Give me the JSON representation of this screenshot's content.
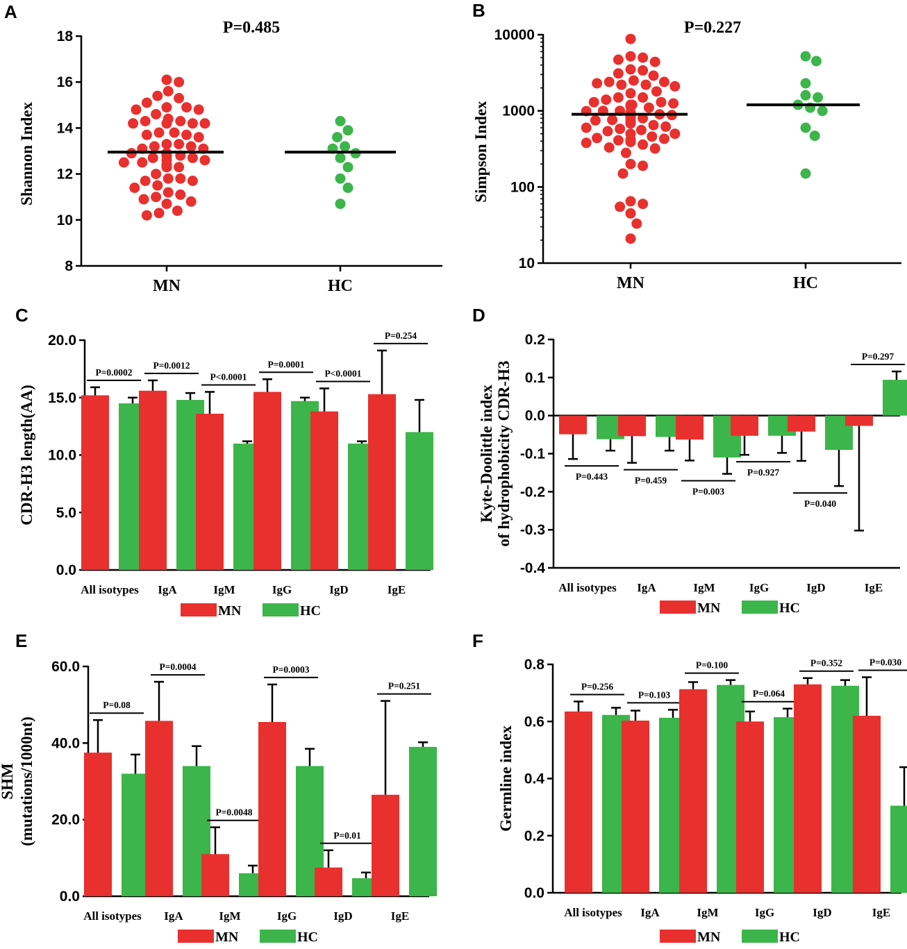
{
  "colors": {
    "MN": "#E8302E",
    "HC": "#3CB54A",
    "axis": "#000000"
  },
  "chart_data": [
    {
      "id": "A",
      "type": "scatter",
      "panel_label": "A",
      "title": "P=0.485",
      "ylabel": "Shannon Index",
      "categories": [
        "MN",
        "HC"
      ],
      "ylim": [
        8,
        18
      ],
      "yticks": [
        "8",
        "10",
        "12",
        "14",
        "16",
        "18"
      ],
      "means": [
        12.95,
        12.95
      ],
      "series": [
        {
          "name": "MN",
          "values": [
            16.1,
            16.0,
            15.6,
            15.4,
            15.3,
            15.1,
            14.9,
            14.9,
            14.8,
            14.8,
            14.6,
            14.4,
            14.3,
            14.3,
            14.2,
            14.2,
            14.2,
            14.2,
            13.8,
            13.8,
            13.7,
            13.7,
            13.6,
            13.3,
            13.3,
            13.2,
            13.2,
            13.1,
            13.1,
            12.9,
            12.9,
            12.9,
            12.9,
            12.8,
            12.8,
            12.7,
            12.6,
            12.5,
            12.4,
            12.3,
            12.3,
            12.4,
            12.5,
            12.6,
            12.7,
            12.8,
            12.9,
            12.9,
            12.9,
            12.4,
            12.3,
            12.0,
            11.8,
            11.8,
            11.7,
            11.7,
            11.5,
            11.4,
            11.2,
            11.1,
            11.0,
            10.9,
            10.8,
            10.7,
            10.4,
            10.3,
            10.2
          ]
        },
        {
          "name": "HC",
          "values": [
            14.3,
            13.9,
            13.6,
            13.2,
            13.1,
            12.9,
            12.7,
            12.3,
            11.8,
            11.4,
            10.7
          ]
        }
      ]
    },
    {
      "id": "B",
      "type": "scatter",
      "panel_label": "B",
      "yscale": "log",
      "title": "P=0.227",
      "ylabel": "Simpson Index",
      "categories": [
        "MN",
        "HC"
      ],
      "ylim": [
        10,
        10000
      ],
      "yticks": [
        "10",
        "100",
        "1000",
        "10000"
      ],
      "means": [
        900,
        1200
      ],
      "series": [
        {
          "name": "MN",
          "values": [
            8800,
            5200,
            5000,
            4700,
            4400,
            3500,
            3400,
            3100,
            2900,
            2500,
            2400,
            2400,
            2300,
            2200,
            2200,
            2100,
            1800,
            1700,
            1500,
            1500,
            1400,
            1300,
            1300,
            1250,
            1200,
            1200,
            1150,
            1100,
            1000,
            1000,
            990,
            950,
            900,
            880,
            850,
            840,
            800,
            780,
            760,
            750,
            720,
            700,
            680,
            650,
            620,
            600,
            580,
            560,
            540,
            500,
            500,
            460,
            440,
            430,
            420,
            410,
            400,
            390,
            380,
            360,
            330,
            320,
            280,
            200,
            190,
            150,
            65,
            60,
            55,
            45,
            33,
            21
          ]
        },
        {
          "name": "HC",
          "values": [
            5200,
            4500,
            2300,
            1600,
            1500,
            1200,
            1100,
            1000,
            600,
            470,
            150
          ]
        }
      ]
    },
    {
      "id": "C",
      "type": "bar",
      "panel_label": "C",
      "ylabel": "CDR-H3 length(AA)",
      "categories": [
        "All isotypes",
        "IgA",
        "IgM",
        "IgG",
        "IgD",
        "IgE"
      ],
      "ylim": [
        0,
        20
      ],
      "yticks": [
        "0.0",
        "5.0",
        "10.0",
        "15.0",
        "20.0"
      ],
      "series": [
        {
          "name": "MN",
          "values": [
            15.2,
            15.6,
            13.6,
            15.5,
            13.8,
            15.3
          ],
          "err": [
            0.7,
            0.9,
            1.9,
            1.1,
            2.0,
            3.8
          ]
        },
        {
          "name": "HC",
          "values": [
            14.5,
            14.8,
            11.0,
            14.7,
            11.0,
            12.0
          ],
          "err": [
            0.5,
            0.6,
            0.2,
            0.3,
            0.2,
            2.8
          ]
        }
      ],
      "pvalues": [
        "P=0.0002",
        "P=0.0012",
        "P<0.0001",
        "P=0.0001",
        "P<0.0001",
        "P=0.254"
      ],
      "legend": [
        "MN",
        "HC"
      ]
    },
    {
      "id": "D",
      "type": "bar",
      "panel_label": "D",
      "ylabel": [
        "Kyte-Doolittle index",
        "of hydrophobicity CDR-H3"
      ],
      "categories": [
        "All isotypes",
        "IgA",
        "IgM",
        "IgG",
        "IgD",
        "IgE"
      ],
      "ylim": [
        -0.4,
        0.2
      ],
      "yticks": [
        "-0.4",
        "-0.3",
        "-0.2",
        "-0.1",
        "0.0",
        "0.1",
        "0.2"
      ],
      "series": [
        {
          "name": "MN",
          "values": [
            -0.049,
            -0.054,
            -0.063,
            -0.053,
            -0.042,
            -0.027
          ],
          "err": [
            0.065,
            0.07,
            0.055,
            0.05,
            0.077,
            0.275
          ]
        },
        {
          "name": "HC",
          "values": [
            -0.062,
            -0.056,
            -0.11,
            -0.053,
            -0.09,
            0.094
          ],
          "err": [
            0.03,
            0.036,
            0.043,
            0.045,
            0.095,
            0.022
          ]
        }
      ],
      "pvalues": [
        "P=0.443",
        "P=0.459",
        "P=0.003",
        "P=0.927",
        "P=0.040",
        "P=0.297"
      ],
      "legend": [
        "MN",
        "HC"
      ]
    },
    {
      "id": "E",
      "type": "bar",
      "panel_label": "E",
      "ylabel": [
        "SHM",
        "(mutations/1000nt)"
      ],
      "categories": [
        "All isotypes",
        "IgA",
        "IgM",
        "IgG",
        "IgD",
        "IgE"
      ],
      "ylim": [
        0,
        60
      ],
      "yticks": [
        "0.0",
        "20.0",
        "40.0",
        "60.0"
      ],
      "series": [
        {
          "name": "MN",
          "values": [
            37.5,
            45.8,
            11.0,
            45.5,
            7.5,
            26.5
          ],
          "err": [
            8.5,
            10.2,
            7.0,
            9.8,
            4.5,
            24.5
          ]
        },
        {
          "name": "HC",
          "values": [
            32.0,
            34.0,
            6.0,
            34.0,
            4.7,
            39.0
          ],
          "err": [
            5.0,
            5.2,
            2.0,
            4.5,
            1.5,
            1.2
          ]
        }
      ],
      "pvalues": [
        "P=0.08",
        "P=0.0004",
        "P=0.0048",
        "P=0.0003",
        "P=0.01",
        "P=0.251"
      ],
      "legend": [
        "MN",
        "HC"
      ]
    },
    {
      "id": "F",
      "type": "bar",
      "panel_label": "F",
      "ylabel": "Germline index",
      "categories": [
        "All isotypes",
        "IgA",
        "IgM",
        "IgG",
        "IgD",
        "IgE"
      ],
      "ylim": [
        0,
        0.8
      ],
      "yticks": [
        "0.0",
        "0.2",
        "0.4",
        "0.6",
        "0.8"
      ],
      "series": [
        {
          "name": "MN",
          "values": [
            0.635,
            0.603,
            0.713,
            0.6,
            0.73,
            0.62
          ],
          "err": [
            0.035,
            0.035,
            0.025,
            0.035,
            0.022,
            0.135
          ]
        },
        {
          "name": "HC",
          "values": [
            0.623,
            0.613,
            0.728,
            0.615,
            0.725,
            0.305
          ],
          "err": [
            0.025,
            0.028,
            0.017,
            0.03,
            0.02,
            0.135
          ]
        }
      ],
      "pvalues": [
        "P=0.256",
        "P=0.103",
        "P=0.100",
        "P=0.064",
        "P=0.352",
        "P=0.030"
      ],
      "legend": [
        "MN",
        "HC"
      ]
    }
  ]
}
